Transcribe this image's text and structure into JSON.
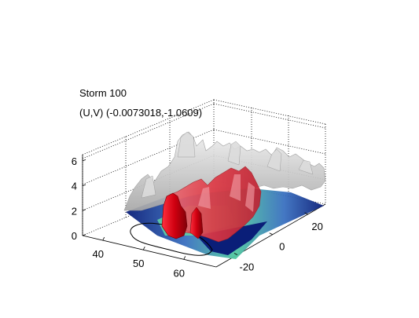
{
  "chart_data": {
    "type": "surface3d",
    "title": "Storm 100",
    "subtitle": "(U,V) (-0.0073018,-1.0609)",
    "xlabel": "",
    "ylabel": "",
    "zlabel": "",
    "x_ticks": [
      "40",
      "50",
      "60"
    ],
    "y_ticks": [
      "-20",
      "0",
      "20"
    ],
    "z_ticks": [
      "0",
      "2",
      "4",
      "6"
    ],
    "xlim": [
      35,
      68
    ],
    "ylim": [
      -32,
      30
    ],
    "zlim": [
      0,
      6.5
    ],
    "grid": true,
    "colors": {
      "outer_isosurface": "#c8c8c8",
      "inner_isosurface": "#e0303a",
      "core_isosurface": "#d00010",
      "base_field_high": "#50c8a0",
      "base_field_low": "#0a1e78"
    }
  }
}
